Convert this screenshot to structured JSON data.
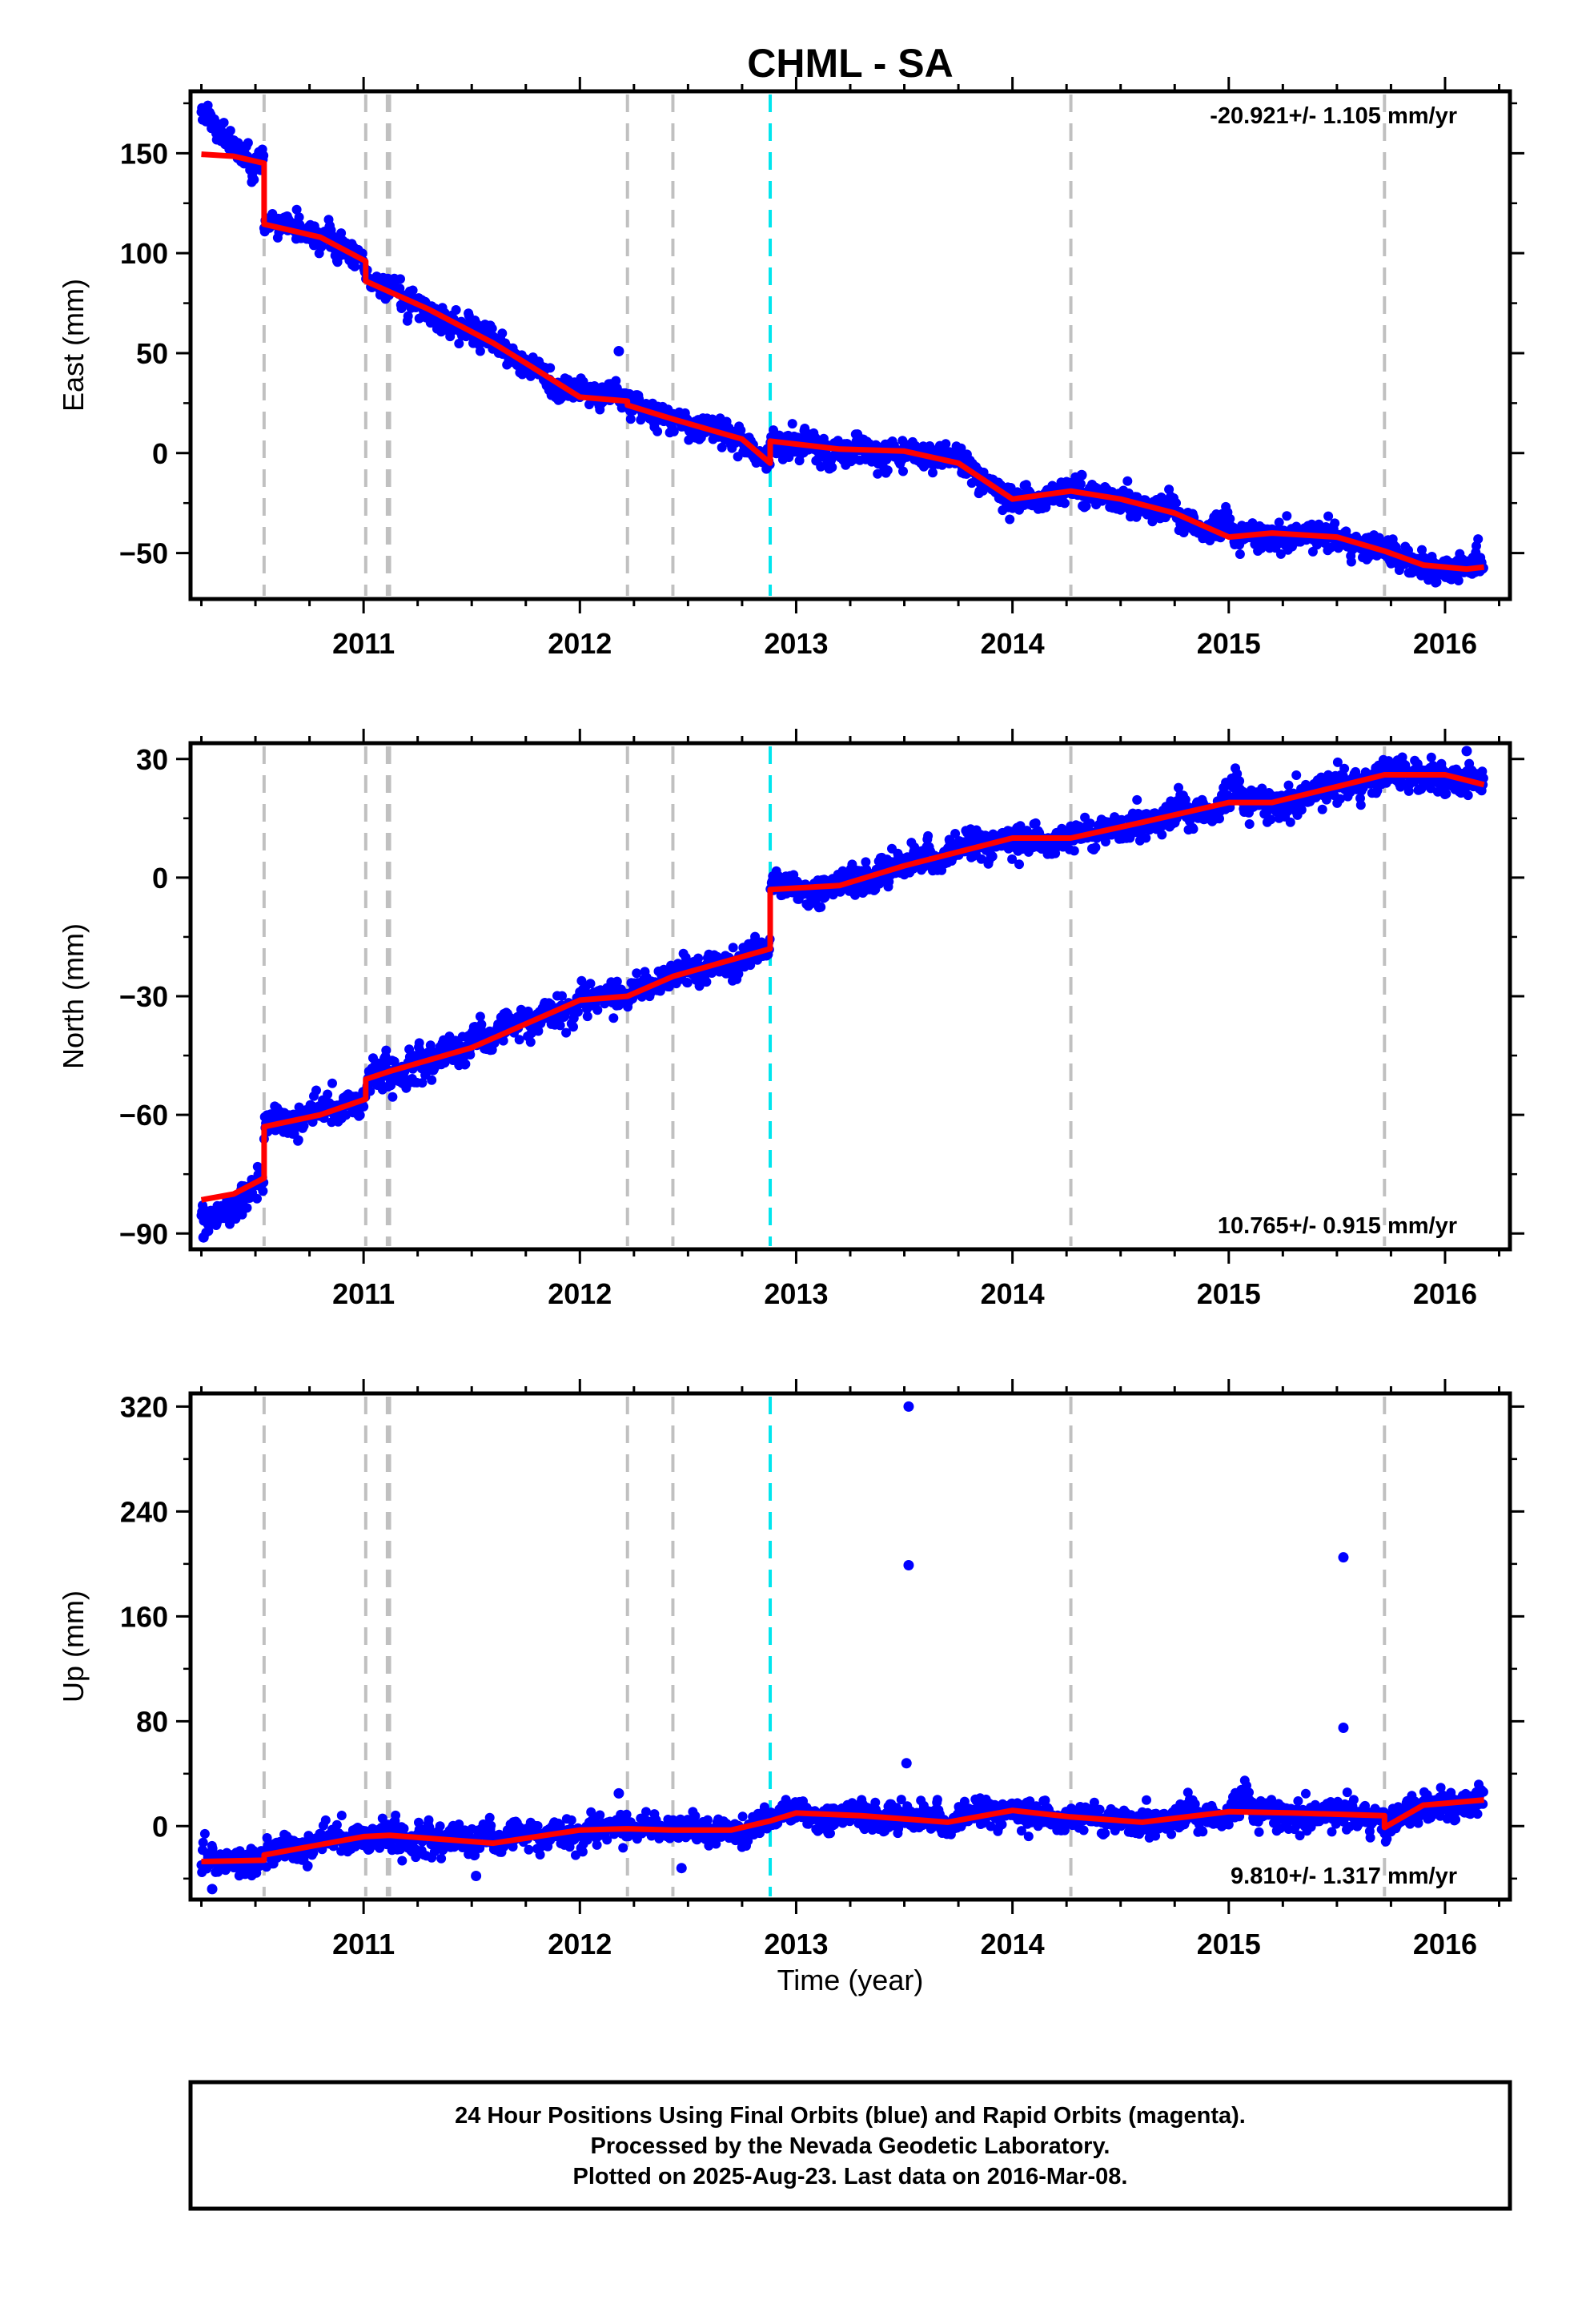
{
  "figure": {
    "title": "CHML - SA",
    "xlabel": "Time (year)",
    "colors": {
      "data": "#0000ff",
      "model": "#ff0000",
      "break": "#c0c0c0",
      "event": "#00e5ee"
    },
    "footer": [
      "24 Hour Positions Using Final Orbits (blue) and Rapid Orbits (magenta).",
      "Processed by the Nevada Geodetic Laboratory.",
      "Plotted on 2025-Aug-23. Last data on 2016-Mar-08."
    ]
  },
  "chart_data": [
    {
      "type": "scatter",
      "component": "east",
      "ylabel": "East (mm)",
      "xlim": [
        2010.2,
        2016.3
      ],
      "ylim": [
        -73,
        181
      ],
      "yticks": [
        -50,
        0,
        50,
        100,
        150
      ],
      "yticklabels": [
        "−50",
        "0",
        "50",
        "100",
        "150"
      ],
      "xticks": [
        2011,
        2012,
        2013,
        2014,
        2015,
        2016
      ],
      "xticklabels": [
        "2011",
        "2012",
        "2013",
        "2014",
        "2015",
        "2016"
      ],
      "rate_text": "-20.921+/- 1.105 mm/yr",
      "rate_position": "top-right",
      "data_range": [
        2010.25,
        2016.18
      ],
      "break_years": [
        2010.54,
        2011.01,
        2011.11,
        2011.12,
        2012.22,
        2012.43,
        2014.27,
        2015.72
      ],
      "event_years": [
        2012.88
      ],
      "model": [
        [
          2010.25,
          149.5
        ],
        [
          2010.4,
          148.5
        ],
        [
          2010.54,
          145
        ],
        [
          2010.54,
          114.5
        ],
        [
          2010.8,
          108
        ],
        [
          2011.01,
          96
        ],
        [
          2011.01,
          86
        ],
        [
          2011.3,
          72
        ],
        [
          2011.6,
          55
        ],
        [
          2011.75,
          45
        ],
        [
          2012.0,
          28
        ],
        [
          2012.22,
          26
        ],
        [
          2012.22,
          24
        ],
        [
          2012.43,
          17
        ],
        [
          2012.75,
          7
        ],
        [
          2012.88,
          -5
        ],
        [
          2012.88,
          6
        ],
        [
          2013.2,
          2
        ],
        [
          2013.5,
          1
        ],
        [
          2013.75,
          -5
        ],
        [
          2014.0,
          -23
        ],
        [
          2014.27,
          -19
        ],
        [
          2014.5,
          -23
        ],
        [
          2014.75,
          -30
        ],
        [
          2015.0,
          -42
        ],
        [
          2015.2,
          -40
        ],
        [
          2015.5,
          -42
        ],
        [
          2015.72,
          -49
        ],
        [
          2015.9,
          -56
        ],
        [
          2016.1,
          -58
        ],
        [
          2016.18,
          -57
        ]
      ],
      "outliers": [
        [
          2012.18,
          51
        ],
        [
          2014.32,
          -11
        ]
      ],
      "noise": 3.0
    },
    {
      "type": "scatter",
      "component": "north",
      "ylabel": "North (mm)",
      "xlim": [
        2010.2,
        2016.3
      ],
      "ylim": [
        -94,
        34
      ],
      "yticks": [
        -90,
        -60,
        -30,
        0,
        30
      ],
      "yticklabels": [
        "−90",
        "−60",
        "−30",
        "0",
        "30"
      ],
      "xticks": [
        2011,
        2012,
        2013,
        2014,
        2015,
        2016
      ],
      "xticklabels": [
        "2011",
        "2012",
        "2013",
        "2014",
        "2015",
        "2016"
      ],
      "rate_text": "10.765+/- 0.915 mm/yr",
      "rate_position": "bottom-right",
      "data_range": [
        2010.25,
        2016.18
      ],
      "break_years": [
        2010.54,
        2011.01,
        2011.11,
        2011.12,
        2012.22,
        2012.43,
        2014.27,
        2015.72
      ],
      "event_years": [
        2012.88
      ],
      "model": [
        [
          2010.25,
          -81.5
        ],
        [
          2010.4,
          -80
        ],
        [
          2010.54,
          -76
        ],
        [
          2010.54,
          -63
        ],
        [
          2010.8,
          -60
        ],
        [
          2011.01,
          -56
        ],
        [
          2011.01,
          -51
        ],
        [
          2011.12,
          -49
        ],
        [
          2011.5,
          -43
        ],
        [
          2012.0,
          -31
        ],
        [
          2012.22,
          -30
        ],
        [
          2012.43,
          -25
        ],
        [
          2012.88,
          -18
        ],
        [
          2012.88,
          -3
        ],
        [
          2013.2,
          -2
        ],
        [
          2013.5,
          3
        ],
        [
          2014.0,
          10
        ],
        [
          2014.27,
          10
        ],
        [
          2014.6,
          14
        ],
        [
          2015.0,
          19
        ],
        [
          2015.2,
          19
        ],
        [
          2015.5,
          23
        ],
        [
          2015.72,
          26
        ],
        [
          2016.0,
          26
        ],
        [
          2016.18,
          23.5
        ]
      ],
      "outliers": [
        [
          2010.26,
          -91
        ],
        [
          2016.1,
          32
        ]
      ],
      "noise": 1.8
    },
    {
      "type": "scatter",
      "component": "up",
      "ylabel": "Up (mm)",
      "xlim": [
        2010.2,
        2016.3
      ],
      "ylim": [
        -56,
        330
      ],
      "yticks": [
        0,
        80,
        160,
        240,
        320
      ],
      "yticklabels": [
        "0",
        "80",
        "160",
        "240",
        "320"
      ],
      "xticks": [
        2011,
        2012,
        2013,
        2014,
        2015,
        2016
      ],
      "xticklabels": [
        "2011",
        "2012",
        "2013",
        "2014",
        "2015",
        "2016"
      ],
      "rate_text": "9.810+/- 1.317 mm/yr",
      "rate_position": "bottom-right",
      "data_range": [
        2010.25,
        2016.18
      ],
      "break_years": [
        2010.54,
        2011.01,
        2011.11,
        2011.12,
        2012.22,
        2012.43,
        2014.27,
        2015.72
      ],
      "event_years": [
        2012.88
      ],
      "model": [
        [
          2010.25,
          -27
        ],
        [
          2010.54,
          -26
        ],
        [
          2010.54,
          -22
        ],
        [
          2011.0,
          -8
        ],
        [
          2011.12,
          -7
        ],
        [
          2011.6,
          -13
        ],
        [
          2012.0,
          -3
        ],
        [
          2012.22,
          -2
        ],
        [
          2012.43,
          -3
        ],
        [
          2012.7,
          -3
        ],
        [
          2012.88,
          4
        ],
        [
          2013.0,
          10
        ],
        [
          2013.3,
          8
        ],
        [
          2013.7,
          3
        ],
        [
          2014.0,
          12
        ],
        [
          2014.27,
          7
        ],
        [
          2014.6,
          3
        ],
        [
          2015.0,
          11
        ],
        [
          2015.3,
          10
        ],
        [
          2015.72,
          8
        ],
        [
          2015.72,
          -1
        ],
        [
          2015.9,
          16
        ],
        [
          2016.18,
          20
        ]
      ],
      "outliers": [
        [
          2013.52,
          320
        ],
        [
          2013.52,
          199
        ],
        [
          2013.51,
          48
        ],
        [
          2015.53,
          205
        ],
        [
          2015.53,
          75
        ],
        [
          2012.18,
          25
        ],
        [
          2011.52,
          -38
        ],
        [
          2012.47,
          -32
        ],
        [
          2010.3,
          -48
        ]
      ],
      "noise": 5.0
    }
  ]
}
